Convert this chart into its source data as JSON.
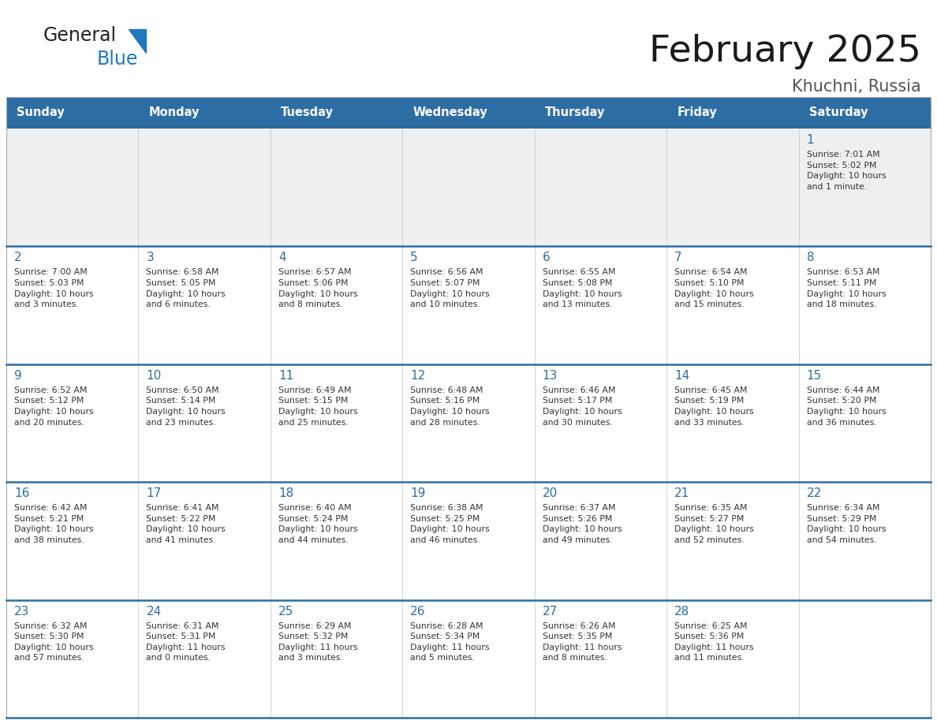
{
  "title": "February 2025",
  "subtitle": "Khuchni, Russia",
  "header_color": "#2E6DA4",
  "header_text_color": "#FFFFFF",
  "background_color": "#FFFFFF",
  "row0_bg": "#EFEFEF",
  "row_odd_bg": "#FFFFFF",
  "row_even_bg": "#FFFFFF",
  "cell_text_color": "#333333",
  "day_num_color": "#2E6DA4",
  "divider_color": "#2E6DA4",
  "col_line_color": "#CCCCCC",
  "days_of_week": [
    "Sunday",
    "Monday",
    "Tuesday",
    "Wednesday",
    "Thursday",
    "Friday",
    "Saturday"
  ],
  "calendar_data": [
    [
      {
        "day": "",
        "info": ""
      },
      {
        "day": "",
        "info": ""
      },
      {
        "day": "",
        "info": ""
      },
      {
        "day": "",
        "info": ""
      },
      {
        "day": "",
        "info": ""
      },
      {
        "day": "",
        "info": ""
      },
      {
        "day": "1",
        "info": "Sunrise: 7:01 AM\nSunset: 5:02 PM\nDaylight: 10 hours\nand 1 minute."
      }
    ],
    [
      {
        "day": "2",
        "info": "Sunrise: 7:00 AM\nSunset: 5:03 PM\nDaylight: 10 hours\nand 3 minutes."
      },
      {
        "day": "3",
        "info": "Sunrise: 6:58 AM\nSunset: 5:05 PM\nDaylight: 10 hours\nand 6 minutes."
      },
      {
        "day": "4",
        "info": "Sunrise: 6:57 AM\nSunset: 5:06 PM\nDaylight: 10 hours\nand 8 minutes."
      },
      {
        "day": "5",
        "info": "Sunrise: 6:56 AM\nSunset: 5:07 PM\nDaylight: 10 hours\nand 10 minutes."
      },
      {
        "day": "6",
        "info": "Sunrise: 6:55 AM\nSunset: 5:08 PM\nDaylight: 10 hours\nand 13 minutes."
      },
      {
        "day": "7",
        "info": "Sunrise: 6:54 AM\nSunset: 5:10 PM\nDaylight: 10 hours\nand 15 minutes."
      },
      {
        "day": "8",
        "info": "Sunrise: 6:53 AM\nSunset: 5:11 PM\nDaylight: 10 hours\nand 18 minutes."
      }
    ],
    [
      {
        "day": "9",
        "info": "Sunrise: 6:52 AM\nSunset: 5:12 PM\nDaylight: 10 hours\nand 20 minutes."
      },
      {
        "day": "10",
        "info": "Sunrise: 6:50 AM\nSunset: 5:14 PM\nDaylight: 10 hours\nand 23 minutes."
      },
      {
        "day": "11",
        "info": "Sunrise: 6:49 AM\nSunset: 5:15 PM\nDaylight: 10 hours\nand 25 minutes."
      },
      {
        "day": "12",
        "info": "Sunrise: 6:48 AM\nSunset: 5:16 PM\nDaylight: 10 hours\nand 28 minutes."
      },
      {
        "day": "13",
        "info": "Sunrise: 6:46 AM\nSunset: 5:17 PM\nDaylight: 10 hours\nand 30 minutes."
      },
      {
        "day": "14",
        "info": "Sunrise: 6:45 AM\nSunset: 5:19 PM\nDaylight: 10 hours\nand 33 minutes."
      },
      {
        "day": "15",
        "info": "Sunrise: 6:44 AM\nSunset: 5:20 PM\nDaylight: 10 hours\nand 36 minutes."
      }
    ],
    [
      {
        "day": "16",
        "info": "Sunrise: 6:42 AM\nSunset: 5:21 PM\nDaylight: 10 hours\nand 38 minutes."
      },
      {
        "day": "17",
        "info": "Sunrise: 6:41 AM\nSunset: 5:22 PM\nDaylight: 10 hours\nand 41 minutes."
      },
      {
        "day": "18",
        "info": "Sunrise: 6:40 AM\nSunset: 5:24 PM\nDaylight: 10 hours\nand 44 minutes."
      },
      {
        "day": "19",
        "info": "Sunrise: 6:38 AM\nSunset: 5:25 PM\nDaylight: 10 hours\nand 46 minutes."
      },
      {
        "day": "20",
        "info": "Sunrise: 6:37 AM\nSunset: 5:26 PM\nDaylight: 10 hours\nand 49 minutes."
      },
      {
        "day": "21",
        "info": "Sunrise: 6:35 AM\nSunset: 5:27 PM\nDaylight: 10 hours\nand 52 minutes."
      },
      {
        "day": "22",
        "info": "Sunrise: 6:34 AM\nSunset: 5:29 PM\nDaylight: 10 hours\nand 54 minutes."
      }
    ],
    [
      {
        "day": "23",
        "info": "Sunrise: 6:32 AM\nSunset: 5:30 PM\nDaylight: 10 hours\nand 57 minutes."
      },
      {
        "day": "24",
        "info": "Sunrise: 6:31 AM\nSunset: 5:31 PM\nDaylight: 11 hours\nand 0 minutes."
      },
      {
        "day": "25",
        "info": "Sunrise: 6:29 AM\nSunset: 5:32 PM\nDaylight: 11 hours\nand 3 minutes."
      },
      {
        "day": "26",
        "info": "Sunrise: 6:28 AM\nSunset: 5:34 PM\nDaylight: 11 hours\nand 5 minutes."
      },
      {
        "day": "27",
        "info": "Sunrise: 6:26 AM\nSunset: 5:35 PM\nDaylight: 11 hours\nand 8 minutes."
      },
      {
        "day": "28",
        "info": "Sunrise: 6:25 AM\nSunset: 5:36 PM\nDaylight: 11 hours\nand 11 minutes."
      },
      {
        "day": "",
        "info": ""
      }
    ]
  ],
  "logo_general_color": "#222222",
  "logo_blue_color": "#2278BE"
}
